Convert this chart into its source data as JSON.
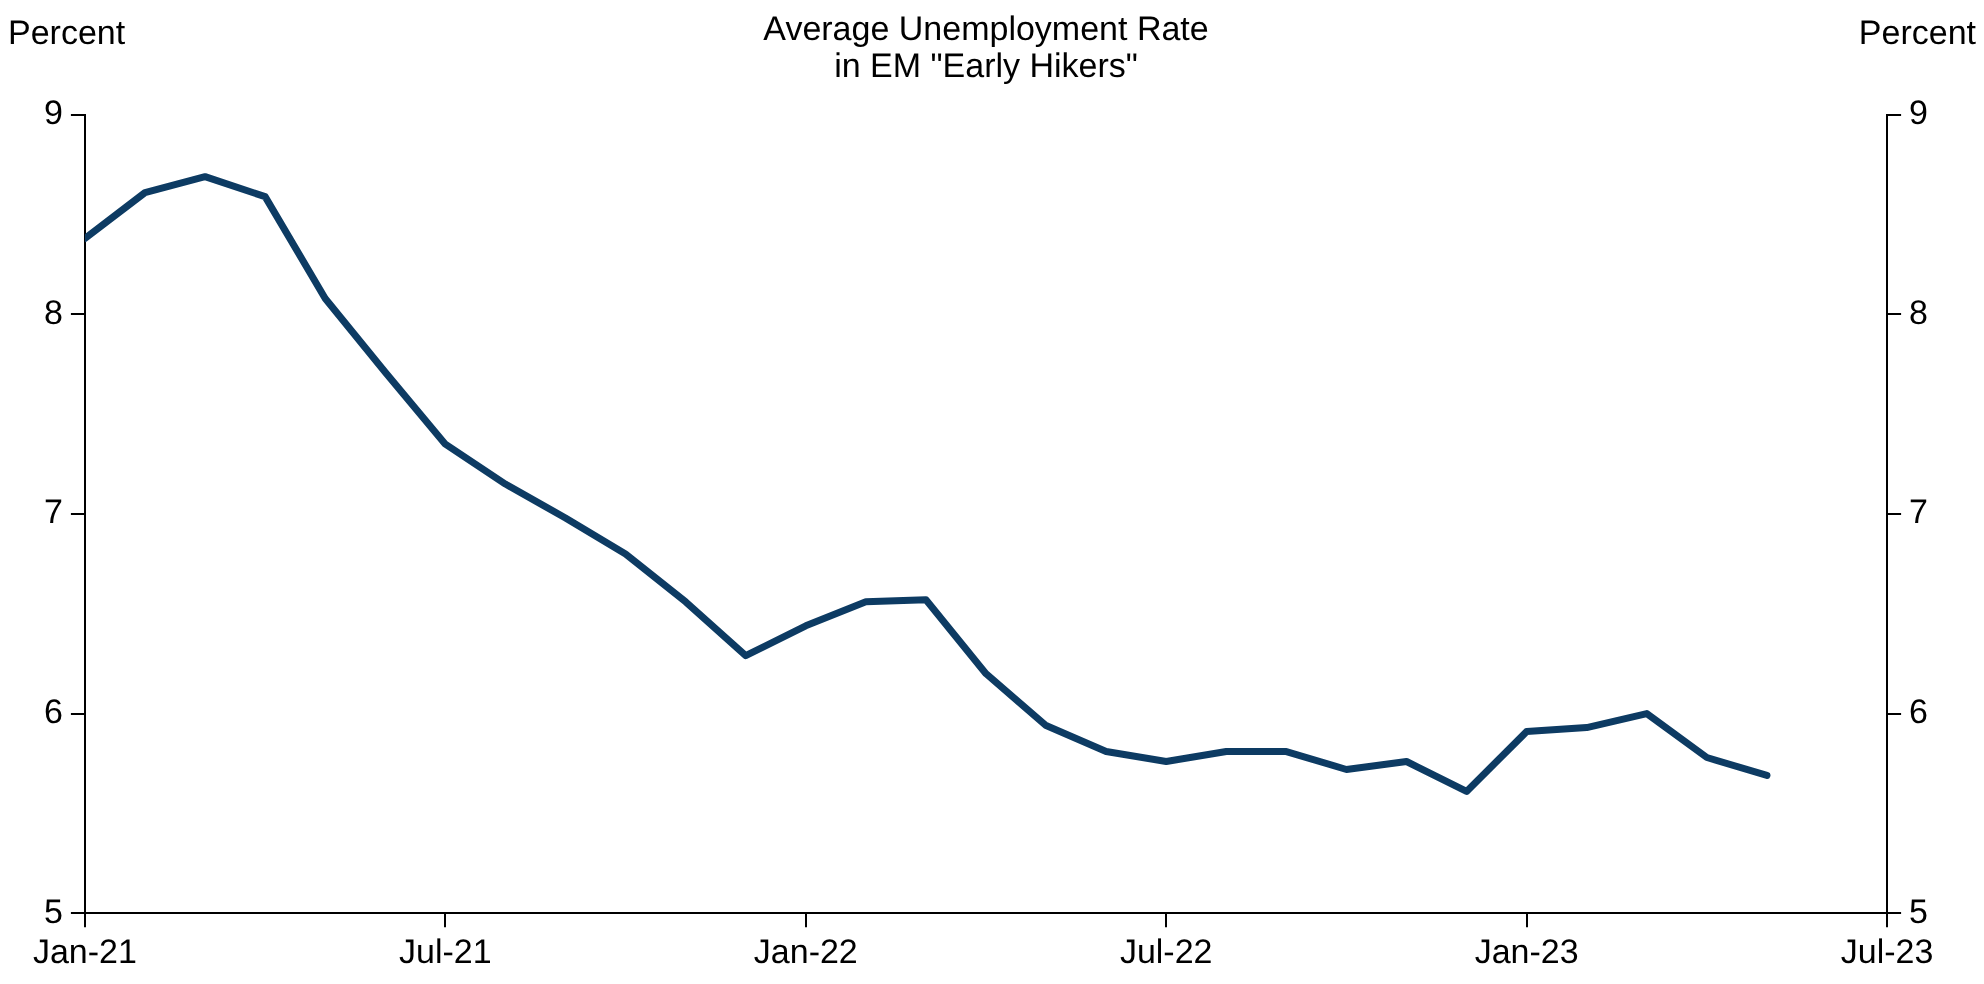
{
  "chart_data": {
    "type": "line",
    "title": "Average Unemployment Rate\nin EM \"Early Hikers\"",
    "ylabel": "Percent",
    "y2label": "Percent",
    "x": [
      "2021-01",
      "2021-02",
      "2021-03",
      "2021-04",
      "2021-05",
      "2021-06",
      "2021-07",
      "2021-08",
      "2021-09",
      "2021-10",
      "2021-11",
      "2021-12",
      "2022-01",
      "2022-02",
      "2022-03",
      "2022-04",
      "2022-05",
      "2022-06",
      "2022-07",
      "2022-08",
      "2022-09",
      "2022-10",
      "2022-11",
      "2022-12",
      "2023-01",
      "2023-02",
      "2023-03",
      "2023-04",
      "2023-05"
    ],
    "series": [
      {
        "color": "#0d3b63",
        "values": [
          8.38,
          8.61,
          8.69,
          8.59,
          8.08,
          7.71,
          7.35,
          7.15,
          6.98,
          6.8,
          6.56,
          6.29,
          6.44,
          6.56,
          6.57,
          6.2,
          5.94,
          5.81,
          5.76,
          5.81,
          5.81,
          5.72,
          5.76,
          5.61,
          5.91,
          5.93,
          6.0,
          5.78,
          5.69
        ]
      }
    ],
    "xlim": [
      "2021-01",
      "2023-07"
    ],
    "xticks": [
      {
        "value": "2021-01",
        "label": "Jan-21"
      },
      {
        "value": "2021-07",
        "label": "Jul-21"
      },
      {
        "value": "2022-01",
        "label": "Jan-22"
      },
      {
        "value": "2022-07",
        "label": "Jul-22"
      },
      {
        "value": "2023-01",
        "label": "Jan-23"
      },
      {
        "value": "2023-07",
        "label": "Jul-23"
      }
    ],
    "ylim": [
      5,
      9
    ],
    "yticks": [
      5,
      6,
      7,
      8,
      9
    ],
    "y2lim": [
      5,
      9
    ],
    "y2ticks": [
      5,
      6,
      7,
      8,
      9
    ],
    "grid": false,
    "legend": false,
    "marker": "none",
    "line_style": "solid"
  }
}
